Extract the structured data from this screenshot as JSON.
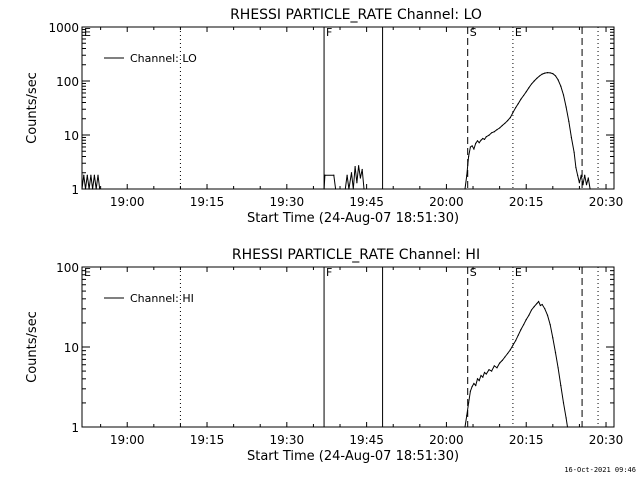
{
  "footer": {
    "date_stamp": "16-Oct-2021 09:46"
  },
  "chart_data": [
    {
      "type": "line",
      "title": "RHESSI PARTICLE_RATE Channel: LO",
      "xlabel": "Start Time (24-Aug-07 18:51:30)",
      "ylabel": "Counts/sec",
      "y_scale": "log",
      "ylim": [
        1,
        1000
      ],
      "xlim": [
        "18:51:30",
        "20:31:30"
      ],
      "x_ticks": [
        "19:00",
        "19:15",
        "19:30",
        "19:45",
        "20:00",
        "20:15",
        "20:30"
      ],
      "y_ticks": [
        "1",
        "10",
        "100",
        "1000"
      ],
      "legend": {
        "position": "top-left",
        "entries": [
          "Channel: LO"
        ]
      },
      "markers": [
        {
          "time": "18:51:30",
          "label": "E",
          "style": "none"
        },
        {
          "time": "19:10:00",
          "label": "",
          "style": "dotted"
        },
        {
          "time": "19:37:00",
          "label": "F",
          "style": "solid"
        },
        {
          "time": "19:48:00",
          "label": "",
          "style": "solid"
        },
        {
          "time": "20:04:00",
          "label": "S",
          "style": "dashed"
        },
        {
          "time": "20:12:30",
          "label": "E",
          "style": "dotted"
        },
        {
          "time": "20:25:30",
          "label": "",
          "style": "dashed"
        },
        {
          "time": "20:28:30",
          "label": "",
          "style": "dotted"
        }
      ],
      "series": [
        {
          "name": "Channel: LO",
          "segments": [
            [
              [
                "18:51:30",
                1
              ],
              [
                "18:51:50",
                1.8
              ],
              [
                "18:52:10",
                1
              ],
              [
                "18:52:30",
                1.8
              ],
              [
                "18:52:50",
                1
              ],
              [
                "18:53:10",
                1.8
              ],
              [
                "18:53:30",
                1
              ],
              [
                "18:53:50",
                1.8
              ],
              [
                "18:54:10",
                1
              ],
              [
                "18:54:30",
                1.8
              ],
              [
                "18:54:50",
                1
              ]
            ],
            [
              [
                "19:37:00",
                1
              ],
              [
                "19:37:10",
                1.8
              ],
              [
                "19:38:50",
                1.8
              ],
              [
                "19:39:10",
                1
              ]
            ],
            [
              [
                "19:41:00",
                1
              ],
              [
                "19:41:20",
                1.8
              ],
              [
                "19:41:40",
                1
              ],
              [
                "19:42:10",
                2
              ],
              [
                "19:42:30",
                1
              ],
              [
                "19:42:50",
                2.6
              ],
              [
                "19:43:10",
                1.3
              ],
              [
                "19:43:30",
                2.7
              ],
              [
                "19:43:50",
                1.6
              ],
              [
                "19:44:10",
                2.3
              ],
              [
                "19:44:30",
                1
              ]
            ],
            [
              [
                "20:03:30",
                1
              ],
              [
                "20:03:50",
                1.8
              ],
              [
                "20:04:10",
                4
              ],
              [
                "20:04:30",
                6
              ],
              [
                "20:04:50",
                6.3
              ],
              [
                "20:05:10",
                5.5
              ],
              [
                "20:05:30",
                7
              ],
              [
                "20:05:50",
                7.8
              ],
              [
                "20:06:10",
                7.2
              ],
              [
                "20:06:30",
                8
              ],
              [
                "20:06:50",
                8.6
              ],
              [
                "20:07:10",
                8.3
              ],
              [
                "20:07:30",
                9.3
              ],
              [
                "20:08:00",
                9.9
              ],
              [
                "20:08:30",
                11
              ],
              [
                "20:09:00",
                11.5
              ],
              [
                "20:09:30",
                12.6
              ],
              [
                "20:10:00",
                13.5
              ],
              [
                "20:10:30",
                15
              ],
              [
                "20:11:00",
                16.5
              ],
              [
                "20:11:30",
                18.5
              ],
              [
                "20:12:00",
                21
              ],
              [
                "20:12:30",
                26
              ],
              [
                "20:13:00",
                32
              ],
              [
                "20:13:30",
                38
              ],
              [
                "20:14:00",
                46
              ],
              [
                "20:14:30",
                54
              ],
              [
                "20:15:00",
                63
              ],
              [
                "20:15:30",
                75
              ],
              [
                "20:16:00",
                88
              ],
              [
                "20:16:30",
                100
              ],
              [
                "20:17:00",
                112
              ],
              [
                "20:17:30",
                124
              ],
              [
                "20:18:00",
                134
              ],
              [
                "20:18:30",
                140
              ],
              [
                "20:19:00",
                143
              ],
              [
                "20:19:30",
                141
              ],
              [
                "20:20:00",
                137
              ],
              [
                "20:20:30",
                125
              ],
              [
                "20:21:00",
                105
              ],
              [
                "20:21:30",
                80
              ],
              [
                "20:22:00",
                55
              ],
              [
                "20:22:30",
                33
              ],
              [
                "20:23:00",
                18
              ],
              [
                "20:23:30",
                9
              ],
              [
                "20:24:00",
                4.8
              ],
              [
                "20:24:20",
                2.5
              ],
              [
                "20:24:40",
                1.8
              ],
              [
                "20:25:00",
                1.3
              ],
              [
                "20:25:20",
                1.8
              ],
              [
                "20:25:40",
                1.2
              ],
              [
                "20:26:00",
                1.8
              ],
              [
                "20:26:20",
                1.2
              ],
              [
                "20:26:40",
                1.6
              ],
              [
                "20:27:00",
                1
              ]
            ]
          ]
        }
      ]
    },
    {
      "type": "line",
      "title": "RHESSI PARTICLE_RATE Channel: HI",
      "xlabel": "Start Time (24-Aug-07 18:51:30)",
      "ylabel": "Counts/sec",
      "y_scale": "log",
      "ylim": [
        1,
        100
      ],
      "xlim": [
        "18:51:30",
        "20:31:30"
      ],
      "x_ticks": [
        "19:00",
        "19:15",
        "19:30",
        "19:45",
        "20:00",
        "20:15",
        "20:30"
      ],
      "y_ticks": [
        "1",
        "10",
        "100"
      ],
      "legend": {
        "position": "top-left",
        "entries": [
          "Channel: HI"
        ]
      },
      "markers": [
        {
          "time": "18:51:30",
          "label": "E",
          "style": "none"
        },
        {
          "time": "19:10:00",
          "label": "",
          "style": "dotted"
        },
        {
          "time": "19:37:00",
          "label": "F",
          "style": "solid"
        },
        {
          "time": "19:48:00",
          "label": "",
          "style": "solid"
        },
        {
          "time": "20:04:00",
          "label": "S",
          "style": "dashed"
        },
        {
          "time": "20:12:30",
          "label": "E",
          "style": "dotted"
        },
        {
          "time": "20:25:30",
          "label": "",
          "style": "dashed"
        },
        {
          "time": "20:28:30",
          "label": "",
          "style": "dotted"
        }
      ],
      "series": [
        {
          "name": "Channel: HI",
          "segments": [
            [
              [
                "20:03:30",
                1
              ],
              [
                "20:03:50",
                1.4
              ],
              [
                "20:04:10",
                2
              ],
              [
                "20:04:30",
                2.8
              ],
              [
                "20:04:50",
                3.2
              ],
              [
                "20:05:10",
                3.5
              ],
              [
                "20:05:30",
                3.3
              ],
              [
                "20:05:50",
                4
              ],
              [
                "20:06:10",
                3.8
              ],
              [
                "20:06:30",
                4.4
              ],
              [
                "20:06:50",
                4.2
              ],
              [
                "20:07:10",
                4.8
              ],
              [
                "20:07:30",
                4.6
              ],
              [
                "20:08:00",
                5.2
              ],
              [
                "20:08:30",
                5
              ],
              [
                "20:09:00",
                5.8
              ],
              [
                "20:09:30",
                5.5
              ],
              [
                "20:10:00",
                6.3
              ],
              [
                "20:10:30",
                6.8
              ],
              [
                "20:11:00",
                7.5
              ],
              [
                "20:11:30",
                8.3
              ],
              [
                "20:12:00",
                9.2
              ],
              [
                "20:12:30",
                10.5
              ],
              [
                "20:13:00",
                12
              ],
              [
                "20:13:30",
                14
              ],
              [
                "20:14:00",
                16.5
              ],
              [
                "20:14:30",
                19
              ],
              [
                "20:15:00",
                22
              ],
              [
                "20:15:30",
                25
              ],
              [
                "20:16:00",
                29
              ],
              [
                "20:16:30",
                32
              ],
              [
                "20:17:00",
                35
              ],
              [
                "20:17:20",
                37
              ],
              [
                "20:17:40",
                33
              ],
              [
                "20:18:00",
                34
              ],
              [
                "20:18:30",
                30
              ],
              [
                "20:19:00",
                25
              ],
              [
                "20:19:30",
                19
              ],
              [
                "20:20:00",
                13
              ],
              [
                "20:20:30",
                8.5
              ],
              [
                "20:21:00",
                5.5
              ],
              [
                "20:21:30",
                3.3
              ],
              [
                "20:22:00",
                2
              ],
              [
                "20:22:30",
                1.3
              ],
              [
                "20:22:45",
                1
              ]
            ]
          ]
        }
      ]
    }
  ]
}
